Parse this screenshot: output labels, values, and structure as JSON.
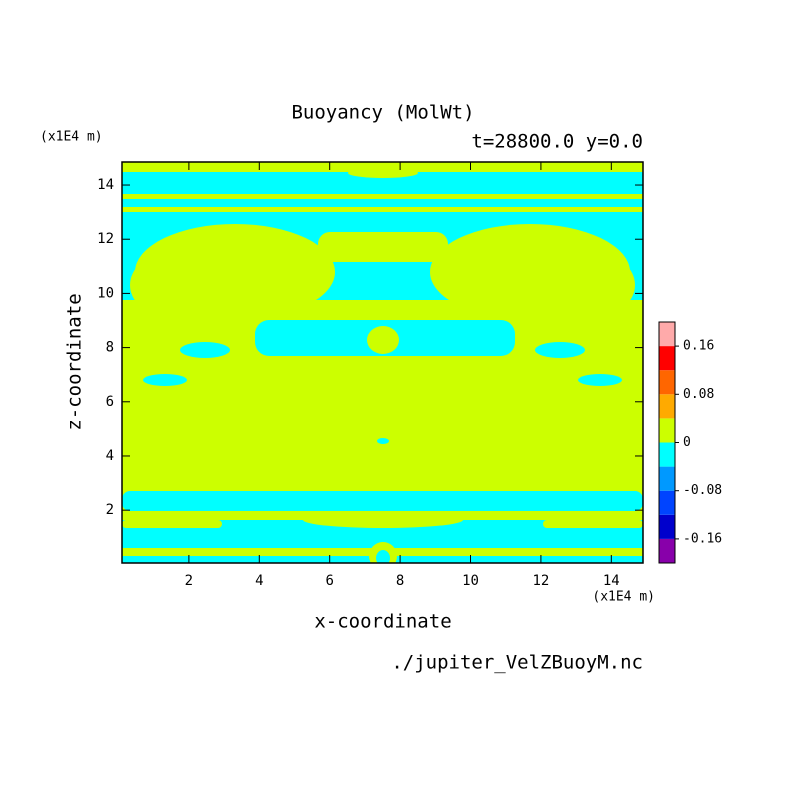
{
  "chart_data": {
    "type": "contour",
    "title": "Buoyancy (MolWt)",
    "subtitle": "t=28800.0 y=0.0",
    "xlabel": "x-coordinate",
    "ylabel": "z-coordinate",
    "xunit": "(x1E4 m)",
    "yunit": "(x1E4 m)",
    "source": "./jupiter_VelZBuoyM.nc",
    "xlim": [
      0.1,
      14.9
    ],
    "ylim": [
      0.05,
      14.85
    ],
    "xticks": [
      2,
      4,
      6,
      8,
      10,
      12,
      14
    ],
    "yticks": [
      2,
      4,
      6,
      8,
      10,
      12,
      14
    ],
    "colorbar": {
      "levels": [
        -0.2,
        -0.16,
        -0.12,
        -0.08,
        -0.04,
        0,
        0.04,
        0.08,
        0.12,
        0.16,
        0.2
      ],
      "colors": [
        "#8800aa",
        "#0000cc",
        "#0044ff",
        "#0099ff",
        "#00ffff",
        "#ccff00",
        "#ffaa00",
        "#ff6600",
        "#ff0000",
        "#ffaaaa"
      ],
      "ticks": [
        -0.16,
        -0.08,
        0,
        0.08,
        0.16
      ]
    }
  }
}
